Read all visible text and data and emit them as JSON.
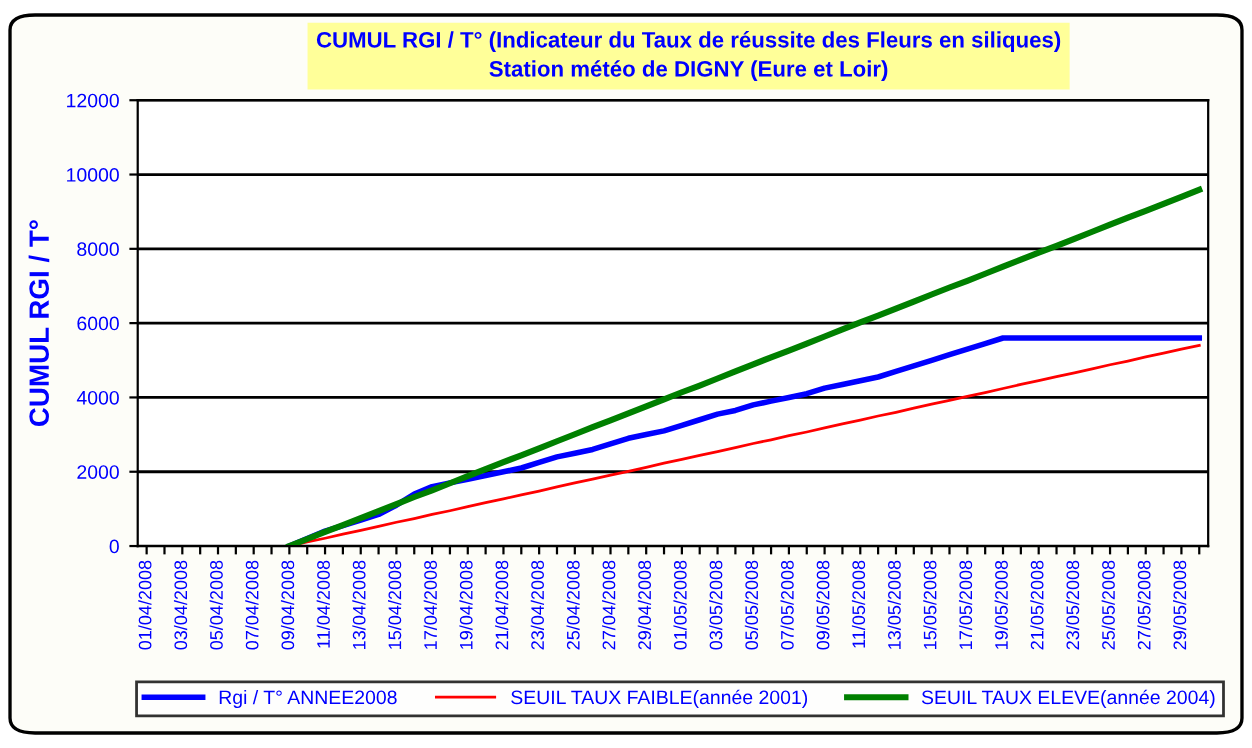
{
  "chart_data": {
    "type": "line",
    "title": "CUMUL RGI / T° (Indicateur du Taux de réussite des Fleurs en siliques)\nStation météo de DIGNY (Eure et Loir)",
    "ylabel": "CUMUL RGI / T°",
    "categories": [
      "01/04/2008",
      null,
      "03/04/2008",
      null,
      "05/04/2008",
      null,
      "07/04/2008",
      null,
      "09/04/2008",
      null,
      "11/04/2008",
      null,
      "13/04/2008",
      null,
      "15/04/2008",
      null,
      "17/04/2008",
      null,
      "19/04/2008",
      null,
      "21/04/2008",
      null,
      "23/04/2008",
      null,
      "25/04/2008",
      null,
      "27/04/2008",
      null,
      "29/04/2008",
      null,
      "01/05/2008",
      null,
      "03/05/2008",
      null,
      "05/05/2008",
      null,
      "07/05/2008",
      null,
      "09/05/2008",
      null,
      "11/05/2008",
      null,
      "13/05/2008",
      null,
      "15/05/2008",
      null,
      "17/05/2008",
      null,
      "19/05/2008",
      null,
      "21/05/2008",
      null,
      "23/05/2008",
      null,
      "25/05/2008",
      null,
      "27/05/2008",
      null,
      "29/05/2008",
      null
    ],
    "series": [
      {
        "name": "Rgi / T° ANNEE2008",
        "color": "#0000ff",
        "values": [
          null,
          null,
          null,
          null,
          null,
          null,
          null,
          null,
          0,
          200,
          400,
          550,
          700,
          850,
          1100,
          1400,
          1600,
          1700,
          1800,
          1900,
          2000,
          2100,
          2250,
          2400,
          2500,
          2600,
          2750,
          2900,
          3000,
          3100,
          3250,
          3400,
          3550,
          3650,
          3800,
          3900,
          4000,
          4100,
          4250,
          4350,
          4450,
          4550,
          4700,
          4850,
          5000,
          5150,
          5300,
          5450,
          5600,
          5600,
          5600,
          5600,
          5600,
          5600,
          5600,
          5600,
          5600,
          5600,
          5600,
          5600
        ]
      },
      {
        "name": "SEUIL TAUX FAIBLE(année 2001)",
        "color": "#ff0000",
        "values": [
          null,
          null,
          null,
          null,
          null,
          null,
          null,
          null,
          0,
          110,
          210,
          320,
          420,
          530,
          640,
          740,
          850,
          950,
          1060,
          1170,
          1270,
          1380,
          1480,
          1590,
          1700,
          1800,
          1910,
          2010,
          2120,
          2230,
          2330,
          2440,
          2540,
          2650,
          2760,
          2860,
          2970,
          3070,
          3180,
          3290,
          3390,
          3500,
          3600,
          3710,
          3820,
          3920,
          4030,
          4130,
          4240,
          4350,
          4450,
          4560,
          4660,
          4770,
          4880,
          4980,
          5090,
          5190,
          5300,
          5400
        ]
      },
      {
        "name": "SEUIL TAUX ELEVE(année 2004)",
        "color": "#008000",
        "values": [
          null,
          null,
          null,
          null,
          null,
          null,
          null,
          null,
          0,
          190,
          380,
          560,
          750,
          940,
          1130,
          1320,
          1500,
          1690,
          1880,
          2070,
          2260,
          2440,
          2630,
          2820,
          3010,
          3200,
          3380,
          3570,
          3760,
          3950,
          4140,
          4320,
          4510,
          4700,
          4890,
          5080,
          5260,
          5450,
          5640,
          5830,
          6020,
          6200,
          6390,
          6580,
          6770,
          6960,
          7140,
          7330,
          7520,
          7710,
          7900,
          8080,
          8270,
          8460,
          8650,
          8840,
          9020,
          9210,
          9400,
          9590
        ]
      }
    ],
    "ylim": [
      0,
      12000
    ],
    "yticks": [
      0,
      2000,
      4000,
      6000,
      8000,
      10000,
      12000
    ],
    "grid": "y",
    "legend": "bottom",
    "marker": "none",
    "line_style": "solid"
  }
}
